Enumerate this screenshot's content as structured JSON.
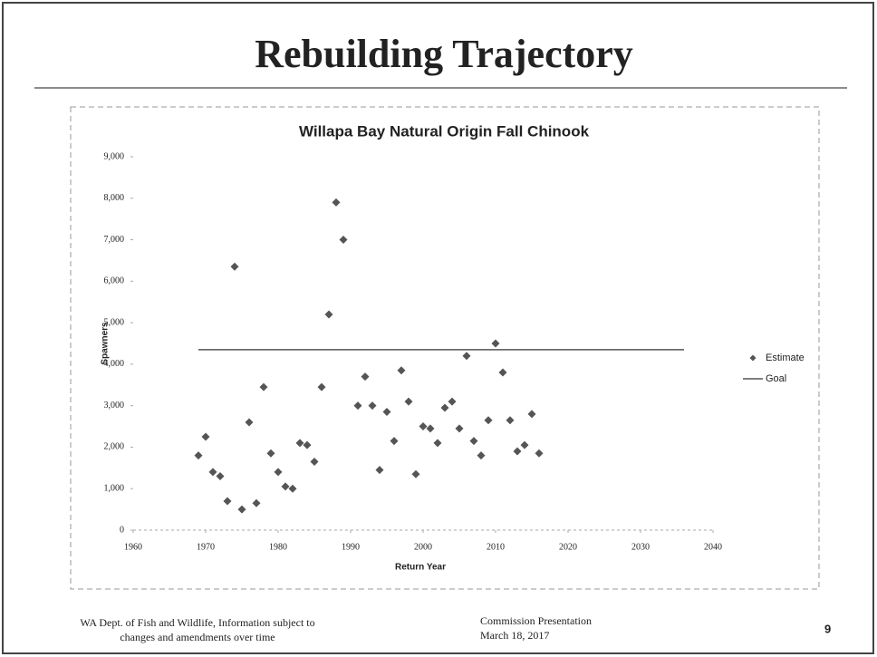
{
  "slide": {
    "title": "Rebuilding Trajectory",
    "footer_left": [
      "WA Dept. of Fish and Wildlife, Information subject to",
      "changes and amendments over time"
    ],
    "footer_center": [
      "Commission Presentation",
      "March 18, 2017"
    ],
    "page_number": "9"
  },
  "chart_data": {
    "type": "scatter",
    "title": "Willapa Bay Natural Origin Fall Chinook",
    "xlabel": "Return Year",
    "ylabel": "Spawners",
    "xlim": [
      1960,
      2040
    ],
    "ylim": [
      0,
      9000
    ],
    "xticks": [
      1960,
      1970,
      1980,
      1990,
      2000,
      2010,
      2020,
      2030,
      2040
    ],
    "yticks": [
      0,
      {
        "value": 1000,
        "label": "1,000"
      },
      {
        "value": 2000,
        "label": "2,000"
      },
      {
        "value": 3000,
        "label": "3,000"
      },
      {
        "value": 4000,
        "label": "4,000"
      },
      {
        "value": 5000,
        "label": "5,000"
      },
      {
        "value": 6000,
        "label": "6,000"
      },
      {
        "value": 7000,
        "label": "7,000"
      },
      {
        "value": 8000,
        "label": "8,000"
      },
      {
        "value": 9000,
        "label": "9,000"
      }
    ],
    "grid": false,
    "legend": "right",
    "series": [
      {
        "name": "Estimate",
        "color": "#555555",
        "marker": "diamond",
        "x": [
          1969,
          1970,
          1971,
          1972,
          1973,
          1974,
          1975,
          1976,
          1977,
          1978,
          1979,
          1980,
          1981,
          1982,
          1983,
          1984,
          1985,
          1986,
          1987,
          1988,
          1989,
          1991,
          1992,
          1993,
          1994,
          1995,
          1996,
          1997,
          1998,
          1999,
          2000,
          2001,
          2002,
          2003,
          2004,
          2005,
          2006,
          2007,
          2008,
          2009,
          2010,
          2011,
          2012,
          2013,
          2014,
          2015,
          2016
        ],
        "values": [
          1800,
          2250,
          1400,
          1300,
          700,
          6350,
          500,
          2600,
          650,
          3450,
          1850,
          1400,
          1050,
          1000,
          2100,
          2050,
          1650,
          3450,
          5200,
          7900,
          7000,
          3000,
          3700,
          3000,
          1450,
          2850,
          2150,
          3850,
          3100,
          1350,
          2500,
          2450,
          2100,
          2950,
          3100,
          2450,
          4200,
          2150,
          1800,
          2650,
          4500,
          3800,
          2650,
          1900,
          2050,
          2800,
          1850
        ]
      },
      {
        "name": "Goal",
        "color": "#555555",
        "marker": "line",
        "x": [
          1969,
          2036
        ],
        "values": [
          4350,
          4350
        ]
      }
    ]
  }
}
